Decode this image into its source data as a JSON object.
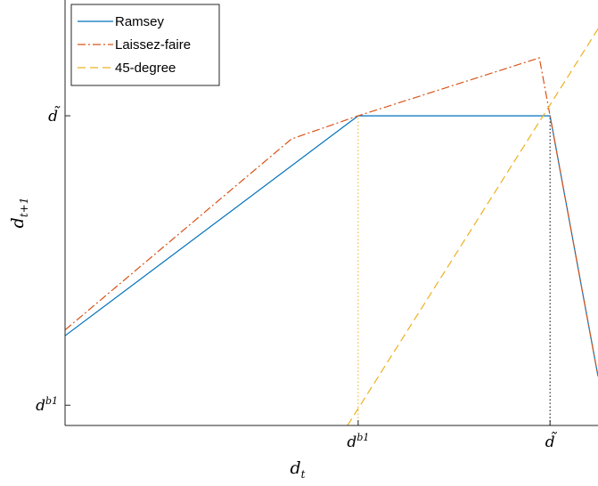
{
  "chart_data": {
    "type": "line",
    "xlabel": "d",
    "xlabel_sub": "t",
    "ylabel": "d",
    "ylabel_sub": "t+1",
    "x_ticks": [
      {
        "value": 0.55,
        "base": "d",
        "sup": "b1"
      },
      {
        "value": 0.91,
        "base": "d̃",
        "sup": ""
      }
    ],
    "y_ticks": [
      {
        "value": 0.0,
        "base": "d",
        "sup": "b1"
      },
      {
        "value": 1.0,
        "base": "d̃",
        "sup": ""
      }
    ],
    "xlim": [
      0.0,
      1.0
    ],
    "ylim": [
      -0.07,
      1.4
    ],
    "grid": false,
    "legend_position": "top-left",
    "series": [
      {
        "name": "Ramsey",
        "color": "#0072BD",
        "style": "solid",
        "x": [
          0.0,
          0.55,
          0.91,
          1.0
        ],
        "y": [
          0.24,
          1.0,
          1.0,
          0.1
        ]
      },
      {
        "name": "Laissez-faire",
        "color": "#D95319",
        "style": "dashdot",
        "x": [
          0.0,
          0.425,
          0.55,
          0.89,
          0.91,
          1.0
        ],
        "y": [
          0.26,
          0.92,
          1.0,
          1.2,
          1.0,
          0.1
        ]
      },
      {
        "name": "45-degree",
        "color": "#EDB120",
        "style": "dashed",
        "x": [
          0.53,
          1.0
        ],
        "y": [
          -0.07,
          1.3
        ]
      }
    ],
    "reference_lines": [
      {
        "x": 0.55,
        "y_from": -0.07,
        "y_to": 1.0,
        "color": "#EDB120",
        "style": "dotted"
      },
      {
        "x": 0.91,
        "y_from": -0.07,
        "y_to": 1.0,
        "color": "#000000",
        "style": "dotted"
      }
    ]
  }
}
